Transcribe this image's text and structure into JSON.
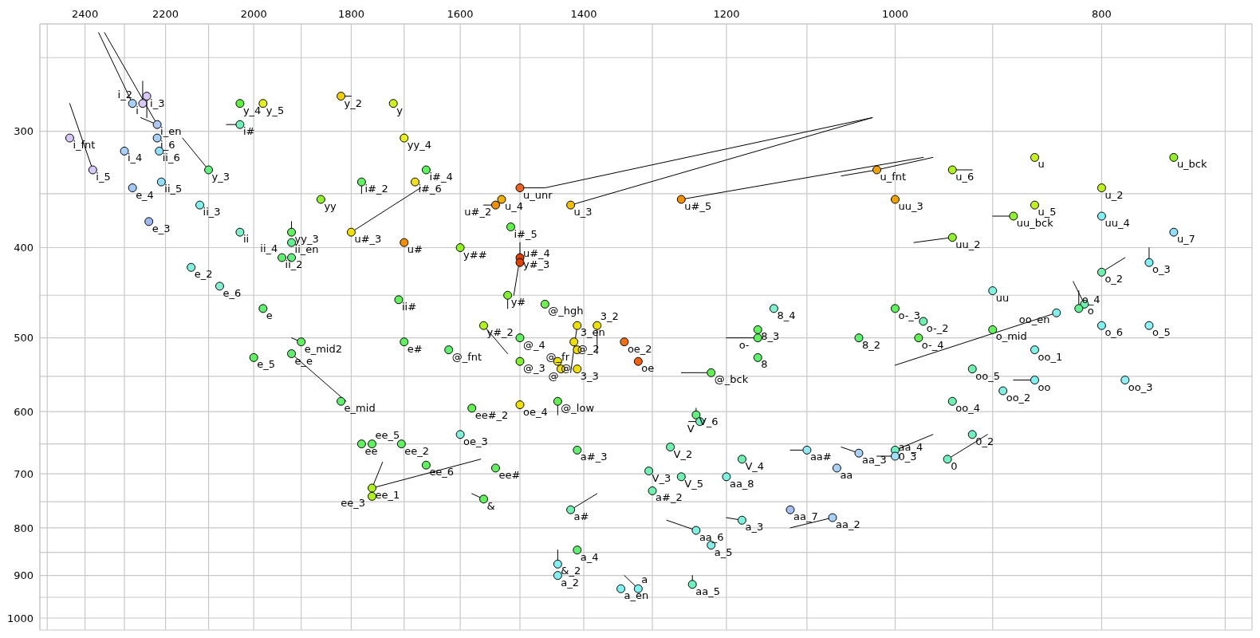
{
  "chart_data": {
    "type": "scatter",
    "log": "xy",
    "grid": true,
    "line_style": "solid",
    "xlim": [
      2520,
      680
    ],
    "ylim": [
      1030,
      230
    ],
    "xticks": [
      {
        "value": 700,
        "label": null
      },
      800,
      {
        "value": 900,
        "label": null
      },
      1000,
      {
        "value": 1100,
        "label": null
      },
      1200,
      {
        "value": 1300,
        "label": null
      },
      1400,
      {
        "value": 1500,
        "label": null
      },
      1600,
      {
        "value": 1700,
        "label": null
      },
      1800,
      {
        "value": 1900,
        "label": null
      },
      2000,
      {
        "value": 2100,
        "label": null
      },
      2200,
      {
        "value": 2300,
        "label": null
      },
      2400,
      {
        "value": 2500,
        "label": null
      }
    ],
    "yticks": [
      {
        "value": 250,
        "label": null
      },
      300,
      {
        "value": 350,
        "label": null
      },
      400,
      {
        "value": 450,
        "label": null
      },
      500,
      {
        "value": 550,
        "label": null
      },
      600,
      {
        "value": 650,
        "label": null
      },
      700,
      {
        "value": 750,
        "label": null
      },
      800,
      {
        "value": 850,
        "label": null
      },
      900,
      {
        "value": 950,
        "label": null
      },
      1000
    ],
    "series": [
      {
        "marker": "circle",
        "x": [
          2245,
          2280,
          2255,
          2220,
          2440,
          2300,
          2220,
          2215,
          2380,
          2210,
          2280,
          2120,
          2240,
          2030,
          2140,
          2075,
          1980,
          1710,
          2030,
          1980,
          1820,
          1720,
          2030,
          1700,
          2100,
          1660,
          1780,
          1680,
          1860,
          1920,
          1920,
          1800,
          1700,
          1940,
          1920,
          1500,
          1530,
          1540,
          1420,
          1260,
          1515,
          1600,
          1500,
          1500,
          1520,
          1460,
          1140,
          1020,
          940,
          860,
          740,
          800,
          1000,
          860,
          880,
          800,
          740,
          940,
          760,
          800,
          900,
          815,
          840,
          820,
          1000,
          970,
          1900,
          2000,
          1920,
          1700,
          1820,
          1780,
          1760,
          1705,
          1660,
          1760,
          1760,
          1560,
          1410,
          1380,
          1500,
          1620,
          1415,
          1410,
          1340,
          1320,
          1500,
          1440,
          1410,
          1435,
          1220,
          1160,
          1160,
          1160,
          1580,
          1500,
          1440,
          1240,
          1235,
          1600,
          1275,
          1410,
          1180,
          1540,
          1305,
          1260,
          1200,
          1100,
          1065,
          1300,
          1560,
          1420,
          1120,
          1070,
          1180,
          1240,
          1220,
          1410,
          1440,
          1440,
          1245,
          1345,
          1320,
          1040,
          975,
          900,
          800,
          760,
          860,
          920,
          860,
          780,
          890,
          940,
          920,
          1040,
          1000,
          1000,
          945
        ],
        "values": [
          275,
          280,
          280,
          295,
          305,
          315,
          305,
          315,
          330,
          340,
          345,
          360,
          375,
          385,
          420,
          440,
          465,
          455,
          280,
          280,
          275,
          280,
          295,
          305,
          330,
          330,
          340,
          340,
          355,
          385,
          395,
          385,
          395,
          410,
          410,
          345,
          355,
          360,
          360,
          355,
          380,
          400,
          410,
          415,
          450,
          460,
          465,
          330,
          330,
          320,
          320,
          345,
          355,
          360,
          370,
          370,
          385,
          390,
          415,
          425,
          445,
          460,
          470,
          465,
          465,
          480,
          505,
          525,
          520,
          505,
          585,
          650,
          650,
          650,
          685,
          725,
          740,
          485,
          485,
          485,
          500,
          515,
          505,
          515,
          505,
          530,
          530,
          530,
          540,
          540,
          545,
          490,
          500,
          525,
          595,
          590,
          585,
          605,
          615,
          635,
          655,
          660,
          675,
          690,
          695,
          705,
          705,
          660,
          690,
          730,
          745,
          765,
          765,
          780,
          785,
          805,
          835,
          845,
          875,
          900,
          920,
          930,
          930,
          500,
          500,
          490,
          485,
          485,
          515,
          540,
          555,
          555,
          570,
          585,
          635,
          665,
          660,
          670,
          675
        ],
        "colors": [
          "#d8c8f8",
          "#a8d0f8",
          "#d8c8f8",
          "#b0c8f8",
          "#d8c8f8",
          "#a8d0f8",
          "#a8d0f8",
          "#90e0f8",
          "#d8c8f8",
          "#90e0f8",
          "#a0c8f8",
          "#80f0e8",
          "#a0b8f0",
          "#80f0c8",
          "#80f0e0",
          "#80f0d0",
          "#60f070",
          "#60f060",
          "#60f040",
          "#e0f020",
          "#f0d000",
          "#d0f020",
          "#70f0b8",
          "#e8f020",
          "#60f080",
          "#60f060",
          "#60f060",
          "#f0e020",
          "#90f030",
          "#60f060",
          "#60f090",
          "#f0e000",
          "#f09000",
          "#60f070",
          "#60f080",
          "#f06020",
          "#f0b000",
          "#f09000",
          "#f0c000",
          "#f09000",
          "#60f050",
          "#90f020",
          "#e04000",
          "#e04000",
          "#80f030",
          "#70f050",
          "#80f0d0",
          "#f0a000",
          "#b0f020",
          "#c8f020",
          "#90f020",
          "#c0f020",
          "#f0a000",
          "#c0f020",
          "#90f030",
          "#80f0f0",
          "#90e0f8",
          "#90f030",
          "#80f0f0",
          "#70f0b0",
          "#80f0e0",
          "#70f0b0",
          "#80f0e8",
          "#60f090",
          "#60f060",
          "#70f0b0",
          "#60f060",
          "#60f060",
          "#60f070",
          "#60f060",
          "#60f070",
          "#60f060",
          "#60f060",
          "#60f060",
          "#60f060",
          "#b0f020",
          "#b0f020",
          "#b0f020",
          "#f0e000",
          "#f0e000",
          "#60f060",
          "#60f070",
          "#f0e000",
          "#f0e000",
          "#f07010",
          "#f06010",
          "#80f030",
          "#f0e000",
          "#f0e000",
          "#f0e000",
          "#60f050",
          "#60f060",
          "#60f060",
          "#60f070",
          "#60f050",
          "#f0e000",
          "#60f050",
          "#60f080",
          "#70f0c0",
          "#80f0d8",
          "#70f0b0",
          "#60f070",
          "#70f0b0",
          "#60f060",
          "#70f0b0",
          "#70f0b0",
          "#80f0e0",
          "#90e8f0",
          "#a8d0f8",
          "#70f0b0",
          "#60f060",
          "#70f0b0",
          "#a8c0f0",
          "#a8d0f8",
          "#80f0e0",
          "#80f0e0",
          "#80f0e8",
          "#60f070",
          "#80f0f0",
          "#80f0f0",
          "#70f0c0",
          "#80f0f0",
          "#80f0f0",
          "#60f070",
          "#60f050",
          "#60f060",
          "#80f0f0",
          "#90f0f8",
          "#80f0e8",
          "#70f0b0",
          "#80f0f0",
          "#90f0f8",
          "#80f0e0",
          "#70f0b0",
          "#70f0c0",
          "#a8d0f8",
          "#70f0c0",
          "#a0e0f8",
          "#70f0c0"
        ]
      },
      {
        "type": "line",
        "color": "#000000",
        "x": [
          2280,
          2365
        ],
        "values": [
          280,
          235
        ]
      },
      {
        "type": "line",
        "color": "#000000",
        "x": [
          2220,
          2350
        ],
        "values": [
          295,
          235
        ]
      },
      {
        "type": "line",
        "color": "#000000",
        "x": [
          2255,
          2255
        ],
        "values": [
          280,
          265
        ]
      },
      {
        "type": "line",
        "color": "#000000",
        "x": [
          2245,
          2245
        ],
        "values": [
          275,
          290
        ]
      },
      {
        "type": "line",
        "color": "#000000",
        "x": [
          2220,
          2260
        ],
        "values": [
          295,
          290
        ]
      },
      {
        "type": "line",
        "color": "#000000",
        "x": [
          2380,
          2440
        ],
        "values": [
          330,
          280
        ]
      },
      {
        "type": "line",
        "color": "#000000",
        "x": [
          2100,
          2160
        ],
        "values": [
          330,
          305
        ]
      },
      {
        "type": "line",
        "color": "#000000",
        "x": [
          2030,
          2060
        ],
        "values": [
          295,
          295
        ]
      },
      {
        "type": "line",
        "color": "#000000",
        "x": [
          1820,
          1800
        ],
        "values": [
          275,
          275
        ]
      },
      {
        "type": "line",
        "color": "#000000",
        "x": [
          1920,
          1920
        ],
        "values": [
          385,
          375
        ]
      },
      {
        "type": "line",
        "color": "#000000",
        "x": [
          1780,
          1780
        ],
        "values": [
          340,
          350
        ]
      },
      {
        "type": "line",
        "color": "#000000",
        "x": [
          1800,
          1670
        ],
        "values": [
          385,
          345
        ]
      },
      {
        "type": "line",
        "color": "#000000",
        "x": [
          1500,
          1460,
          1025
        ],
        "values": [
          345,
          345,
          290
        ]
      },
      {
        "type": "line",
        "color": "#000000",
        "x": [
          1420,
          1025
        ],
        "values": [
          360,
          290
        ]
      },
      {
        "type": "line",
        "color": "#000000",
        "x": [
          1260,
          970
        ],
        "values": [
          355,
          320
        ]
      },
      {
        "type": "line",
        "color": "#000000",
        "x": [
          1060,
          1020,
          960
        ],
        "values": [
          335,
          330,
          320
        ]
      },
      {
        "type": "line",
        "color": "#000000",
        "x": [
          1540,
          1560
        ],
        "values": [
          360,
          360
        ]
      },
      {
        "type": "line",
        "color": "#000000",
        "x": [
          1500,
          1500,
          1510
        ],
        "values": [
          395,
          410,
          450
        ]
      },
      {
        "type": "line",
        "color": "#000000",
        "x": [
          1520,
          1520
        ],
        "values": [
          450,
          465
        ]
      },
      {
        "type": "line",
        "color": "#000000",
        "x": [
          940,
          920
        ],
        "values": [
          330,
          330
        ]
      },
      {
        "type": "line",
        "color": "#000000",
        "x": [
          880,
          900
        ],
        "values": [
          370,
          370
        ]
      },
      {
        "type": "line",
        "color": "#000000",
        "x": [
          940,
          980
        ],
        "values": [
          390,
          395
        ]
      },
      {
        "type": "line",
        "color": "#000000",
        "x": [
          760,
          760
        ],
        "values": [
          415,
          400
        ]
      },
      {
        "type": "line",
        "color": "#000000",
        "x": [
          800,
          780
        ],
        "values": [
          425,
          410
        ]
      },
      {
        "type": "line",
        "color": "#000000",
        "x": [
          815,
          825
        ],
        "values": [
          460,
          435
        ]
      },
      {
        "type": "line",
        "color": "#000000",
        "x": [
          820,
          820
        ],
        "values": [
          465,
          445
        ]
      },
      {
        "type": "line",
        "color": "#000000",
        "x": [
          840,
          1000
        ],
        "values": [
          470,
          535
        ]
      },
      {
        "type": "line",
        "color": "#000000",
        "x": [
          1900,
          1920
        ],
        "values": [
          505,
          500
        ]
      },
      {
        "type": "line",
        "color": "#000000",
        "x": [
          1920,
          1810
        ],
        "values": [
          520,
          585
        ]
      },
      {
        "type": "line",
        "color": "#000000",
        "x": [
          1760,
          1740
        ],
        "values": [
          725,
          680
        ]
      },
      {
        "type": "line",
        "color": "#000000",
        "x": [
          1760,
          1565
        ],
        "values": [
          725,
          675
        ]
      },
      {
        "type": "line",
        "color": "#000000",
        "x": [
          1560,
          1520
        ],
        "values": [
          485,
          520
        ]
      },
      {
        "type": "line",
        "color": "#000000",
        "x": [
          1410,
          1420
        ],
        "values": [
          485,
          545
        ]
      },
      {
        "type": "line",
        "color": "#000000",
        "x": [
          1380,
          1380
        ],
        "values": [
          485,
          520
        ]
      },
      {
        "type": "line",
        "color": "#000000",
        "x": [
          1440,
          1440
        ],
        "values": [
          585,
          605
        ]
      },
      {
        "type": "line",
        "color": "#000000",
        "x": [
          1220,
          1260
        ],
        "values": [
          545,
          545
        ]
      },
      {
        "type": "line",
        "color": "#000000",
        "x": [
          1160,
          1200
        ],
        "values": [
          500,
          500
        ]
      },
      {
        "type": "line",
        "color": "#000000",
        "x": [
          1240,
          1240
        ],
        "values": [
          605,
          595
        ]
      },
      {
        "type": "line",
        "color": "#000000",
        "x": [
          1235,
          1250
        ],
        "values": [
          615,
          615
        ]
      },
      {
        "type": "line",
        "color": "#000000",
        "x": [
          1560,
          1580
        ],
        "values": [
          745,
          735
        ]
      },
      {
        "type": "line",
        "color": "#000000",
        "x": [
          1420,
          1380
        ],
        "values": [
          765,
          735
        ]
      },
      {
        "type": "line",
        "color": "#000000",
        "x": [
          1240,
          1280
        ],
        "values": [
          805,
          785
        ]
      },
      {
        "type": "line",
        "color": "#000000",
        "x": [
          1180,
          1200
        ],
        "values": [
          785,
          780
        ]
      },
      {
        "type": "line",
        "color": "#000000",
        "x": [
          1070,
          1120
        ],
        "values": [
          780,
          800
        ]
      },
      {
        "type": "line",
        "color": "#000000",
        "x": [
          1440,
          1440
        ],
        "values": [
          875,
          845
        ]
      },
      {
        "type": "line",
        "color": "#000000",
        "x": [
          1320,
          1340
        ],
        "values": [
          930,
          900
        ]
      },
      {
        "type": "line",
        "color": "#000000",
        "x": [
          1245,
          1245
        ],
        "values": [
          920,
          900
        ]
      },
      {
        "type": "line",
        "color": "#000000",
        "x": [
          1100,
          1120
        ],
        "values": [
          660,
          660
        ]
      },
      {
        "type": "line",
        "color": "#000000",
        "x": [
          1040,
          1060
        ],
        "values": [
          665,
          655
        ]
      },
      {
        "type": "line",
        "color": "#000000",
        "x": [
          1000,
          960
        ],
        "values": [
          660,
          635
        ]
      },
      {
        "type": "line",
        "color": "#000000",
        "x": [
          1000,
          1020
        ],
        "values": [
          670,
          670
        ]
      },
      {
        "type": "line",
        "color": "#000000",
        "x": [
          945,
          905
        ],
        "values": [
          675,
          635
        ]
      },
      {
        "type": "line",
        "color": "#000000",
        "x": [
          860,
          880
        ],
        "values": [
          555,
          555
        ]
      }
    ],
    "annotations": [
      {
        "text": "i_3",
        "x": 2245,
        "y": 275
      },
      {
        "text": "i",
        "x": 2280,
        "y": 280
      },
      {
        "text": "i_2",
        "x": 2255,
        "y": 280
      },
      {
        "text": "i_en",
        "x": 2220,
        "y": 295
      },
      {
        "text": "i_fnt",
        "x": 2440,
        "y": 305
      },
      {
        "text": "i_4",
        "x": 2300,
        "y": 315
      },
      {
        "text": "i_6",
        "x": 2220,
        "y": 305
      },
      {
        "text": "ii_6",
        "x": 2215,
        "y": 315
      },
      {
        "text": "i_5",
        "x": 2380,
        "y": 330
      },
      {
        "text": "ii_5",
        "x": 2210,
        "y": 340
      },
      {
        "text": "e_4",
        "x": 2280,
        "y": 345
      },
      {
        "text": "ii_3",
        "x": 2120,
        "y": 360
      },
      {
        "text": "e_3",
        "x": 2240,
        "y": 375
      },
      {
        "text": "ii",
        "x": 2030,
        "y": 385
      },
      {
        "text": "e_2",
        "x": 2140,
        "y": 420
      },
      {
        "text": "e_6",
        "x": 2075,
        "y": 440
      },
      {
        "text": "e",
        "x": 1980,
        "y": 465
      },
      {
        "text": "ii#",
        "x": 1710,
        "y": 455
      },
      {
        "text": "y_4",
        "x": 2030,
        "y": 280
      },
      {
        "text": "y_5",
        "x": 1980,
        "y": 280
      },
      {
        "text": "y_2",
        "x": 1820,
        "y": 275
      },
      {
        "text": "y",
        "x": 1720,
        "y": 280
      },
      {
        "text": "i#",
        "x": 2030,
        "y": 295
      },
      {
        "text": "yy_4",
        "x": 1700,
        "y": 305
      },
      {
        "text": "y_3",
        "x": 2100,
        "y": 330
      },
      {
        "text": "i#_4",
        "x": 1660,
        "y": 330
      },
      {
        "text": "i#_2",
        "x": 1780,
        "y": 340
      },
      {
        "text": "i#_6",
        "x": 1680,
        "y": 340
      },
      {
        "text": "yy",
        "x": 1860,
        "y": 355
      },
      {
        "text": "yy_3",
        "x": 1920,
        "y": 385
      },
      {
        "text": "ii_en",
        "x": 1920,
        "y": 395
      },
      {
        "text": "u#_3",
        "x": 1800,
        "y": 385
      },
      {
        "text": "u#",
        "x": 1700,
        "y": 395
      },
      {
        "text": "ii_2",
        "x": 1940,
        "y": 410
      },
      {
        "text": "ii_4",
        "x": 1920,
        "y": 410
      },
      {
        "text": "u_unr",
        "x": 1500,
        "y": 345
      },
      {
        "text": "u_4",
        "x": 1530,
        "y": 355
      },
      {
        "text": "u#_2",
        "x": 1540,
        "y": 360
      },
      {
        "text": "u_3",
        "x": 1420,
        "y": 360
      },
      {
        "text": "u#_5",
        "x": 1260,
        "y": 355
      },
      {
        "text": "i#_5",
        "x": 1515,
        "y": 380
      },
      {
        "text": "y##",
        "x": 1600,
        "y": 400
      },
      {
        "text": "y#_3",
        "x": 1500,
        "y": 410
      },
      {
        "text": "u#_4",
        "x": 1500,
        "y": 415
      },
      {
        "text": "y#",
        "x": 1520,
        "y": 450
      },
      {
        "text": "@_hgh",
        "x": 1460,
        "y": 460
      },
      {
        "text": "8_4",
        "x": 1140,
        "y": 465
      },
      {
        "text": "u_fnt",
        "x": 1020,
        "y": 330
      },
      {
        "text": "u_6",
        "x": 940,
        "y": 330
      },
      {
        "text": "u",
        "x": 860,
        "y": 320
      },
      {
        "text": "u_bck",
        "x": 740,
        "y": 320
      },
      {
        "text": "u_2",
        "x": 800,
        "y": 345
      },
      {
        "text": "uu_3",
        "x": 1000,
        "y": 355
      },
      {
        "text": "u_5",
        "x": 860,
        "y": 360
      },
      {
        "text": "uu_bck",
        "x": 880,
        "y": 370
      },
      {
        "text": "uu_4",
        "x": 800,
        "y": 370
      },
      {
        "text": "u_7",
        "x": 740,
        "y": 385
      },
      {
        "text": "uu_2",
        "x": 940,
        "y": 390
      },
      {
        "text": "o_3",
        "x": 760,
        "y": 415
      },
      {
        "text": "o_2",
        "x": 800,
        "y": 425
      },
      {
        "text": "uu",
        "x": 900,
        "y": 445
      },
      {
        "text": "o",
        "x": 815,
        "y": 460
      },
      {
        "text": "oo_en",
        "x": 840,
        "y": 470
      },
      {
        "text": "o_4",
        "x": 820,
        "y": 465
      },
      {
        "text": "o-_3",
        "x": 1000,
        "y": 465
      },
      {
        "text": "o-_2",
        "x": 970,
        "y": 480
      },
      {
        "text": "e_mid2",
        "x": 1900,
        "y": 505
      },
      {
        "text": "e_5",
        "x": 2000,
        "y": 525
      },
      {
        "text": "e_e",
        "x": 1920,
        "y": 520
      },
      {
        "text": "e#",
        "x": 1700,
        "y": 505
      },
      {
        "text": "e_mid",
        "x": 1820,
        "y": 585
      },
      {
        "text": "ee",
        "x": 1780,
        "y": 650
      },
      {
        "text": "ee_5",
        "x": 1760,
        "y": 650
      },
      {
        "text": "ee_2",
        "x": 1705,
        "y": 650
      },
      {
        "text": "ee_6",
        "x": 1660,
        "y": 685
      },
      {
        "text": "ee_1",
        "x": 1760,
        "y": 725
      },
      {
        "text": "ee_3",
        "x": 1760,
        "y": 740
      },
      {
        "text": "y#_2",
        "x": 1560,
        "y": 485
      },
      {
        "text": "3_en",
        "x": 1410,
        "y": 485
      },
      {
        "text": "3_2",
        "x": 1380,
        "y": 485
      },
      {
        "text": "@_4",
        "x": 1500,
        "y": 500
      },
      {
        "text": "@_fnt",
        "x": 1620,
        "y": 515
      },
      {
        "text": "@_2",
        "x": 1415,
        "y": 505
      },
      {
        "text": "@_fr",
        "x": 1410,
        "y": 515
      },
      {
        "text": "oe_2",
        "x": 1340,
        "y": 505
      },
      {
        "text": "oe",
        "x": 1320,
        "y": 530
      },
      {
        "text": "@_3",
        "x": 1500,
        "y": 530
      },
      {
        "text": "@",
        "x": 1440,
        "y": 530
      },
      {
        "text": "3_3",
        "x": 1410,
        "y": 540
      },
      {
        "text": "@",
        "x": 1435,
        "y": 540
      },
      {
        "text": "@_bck",
        "x": 1220,
        "y": 545
      },
      {
        "text": "8_3",
        "x": 1160,
        "y": 490
      },
      {
        "text": "o-",
        "x": 1160,
        "y": 500
      },
      {
        "text": "8",
        "x": 1160,
        "y": 525
      },
      {
        "text": "ee#_2",
        "x": 1580,
        "y": 595
      },
      {
        "text": "oe_4",
        "x": 1500,
        "y": 590
      },
      {
        "text": "@_low",
        "x": 1440,
        "y": 585
      },
      {
        "text": "V_6",
        "x": 1240,
        "y": 605
      },
      {
        "text": "V",
        "x": 1235,
        "y": 615
      },
      {
        "text": "oe_3",
        "x": 1600,
        "y": 635
      },
      {
        "text": "V_2",
        "x": 1275,
        "y": 655
      },
      {
        "text": "a#_3",
        "x": 1410,
        "y": 660
      },
      {
        "text": "V_4",
        "x": 1180,
        "y": 675
      },
      {
        "text": "ee#",
        "x": 1540,
        "y": 690
      },
      {
        "text": "V_3",
        "x": 1305,
        "y": 695
      },
      {
        "text": "V_5",
        "x": 1260,
        "y": 705
      },
      {
        "text": "aa_8",
        "x": 1200,
        "y": 705
      },
      {
        "text": "aa#",
        "x": 1100,
        "y": 660
      },
      {
        "text": "aa",
        "x": 1065,
        "y": 690
      },
      {
        "text": "a#_2",
        "x": 1300,
        "y": 730
      },
      {
        "text": "&",
        "x": 1560,
        "y": 745
      },
      {
        "text": "a#",
        "x": 1420,
        "y": 765
      },
      {
        "text": "aa_7",
        "x": 1120,
        "y": 765
      },
      {
        "text": "aa_2",
        "x": 1070,
        "y": 780
      },
      {
        "text": "a_3",
        "x": 1180,
        "y": 785
      },
      {
        "text": "aa_6",
        "x": 1240,
        "y": 805
      },
      {
        "text": "a_5",
        "x": 1220,
        "y": 835
      },
      {
        "text": "a_4",
        "x": 1410,
        "y": 845
      },
      {
        "text": "&_2",
        "x": 1440,
        "y": 875
      },
      {
        "text": "a_2",
        "x": 1440,
        "y": 900
      },
      {
        "text": "aa_5",
        "x": 1245,
        "y": 920
      },
      {
        "text": "a_en",
        "x": 1345,
        "y": 930
      },
      {
        "text": "a",
        "x": 1320,
        "y": 930
      },
      {
        "text": "8_2",
        "x": 1040,
        "y": 500
      },
      {
        "text": "o-_4",
        "x": 975,
        "y": 500
      },
      {
        "text": "o_mid",
        "x": 900,
        "y": 490
      },
      {
        "text": "o_6",
        "x": 800,
        "y": 485
      },
      {
        "text": "o_5",
        "x": 760,
        "y": 485
      },
      {
        "text": "oo_1",
        "x": 860,
        "y": 515
      },
      {
        "text": "oo_5",
        "x": 920,
        "y": 540
      },
      {
        "text": "oo",
        "x": 860,
        "y": 555
      },
      {
        "text": "oo_3",
        "x": 780,
        "y": 555
      },
      {
        "text": "oo_2",
        "x": 890,
        "y": 570
      },
      {
        "text": "oo_4",
        "x": 940,
        "y": 585
      },
      {
        "text": "0_2",
        "x": 920,
        "y": 635
      },
      {
        "text": "aa_3",
        "x": 1040,
        "y": 665
      },
      {
        "text": "0_3",
        "x": 1000,
        "y": 660
      },
      {
        "text": "aa_4",
        "x": 1000,
        "y": 670
      },
      {
        "text": "0",
        "x": 945,
        "y": 675
      }
    ]
  }
}
